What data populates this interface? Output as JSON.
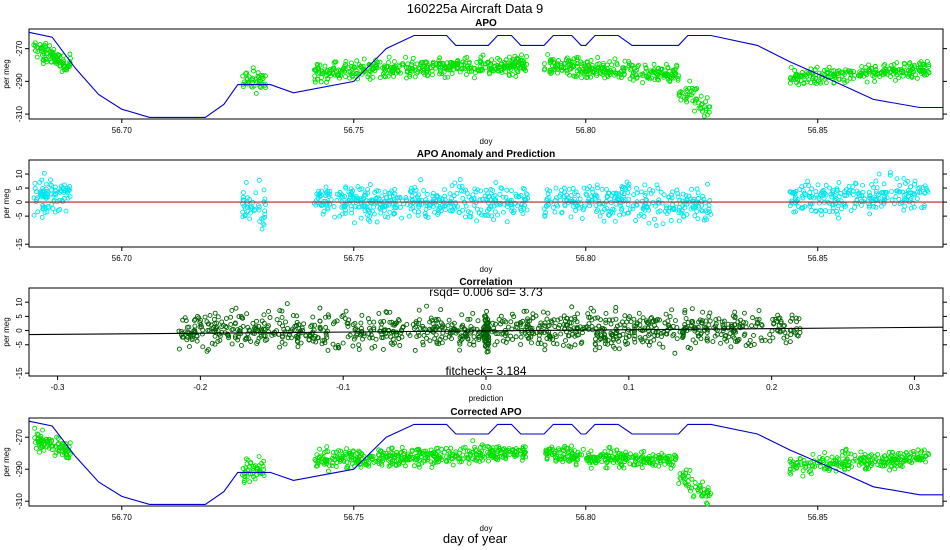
{
  "figure": {
    "title": "160225a   Aircraft Data 9",
    "bottom_label": "day of year"
  },
  "colors": {
    "green": "#00e000",
    "cyan": "#00e5ee",
    "dark_green": "#006400",
    "blue": "#0000cd",
    "red": "#b22222",
    "black": "#000000"
  },
  "chart_data": [
    {
      "type": "scatter",
      "title": "APO",
      "xlabel": "doy",
      "ylabel": "per meg",
      "xlim": [
        56.68,
        56.877
      ],
      "ylim": [
        -313,
        -258
      ],
      "xticks": [
        56.7,
        56.75,
        56.8,
        56.85
      ],
      "xtick_labels": [
        "56.70",
        "56.75",
        "56.80",
        "56.85"
      ],
      "yticks": [
        -310,
        -290,
        -270
      ],
      "ytick_labels": [
        "-310",
        "-290",
        "-270"
      ],
      "point_color": "green",
      "segments": [
        {
          "x0": 56.681,
          "x1": 56.689,
          "mean": -275,
          "trend": -10,
          "spread": 4,
          "n": 90
        },
        {
          "x0": 56.726,
          "x1": 56.731,
          "mean": -290,
          "trend": 0,
          "spread": 5,
          "n": 45
        },
        {
          "x0": 56.7415,
          "x1": 56.7875,
          "mean": -282,
          "trend": 5,
          "spread": 4,
          "n": 420
        },
        {
          "x0": 56.791,
          "x1": 56.82,
          "mean": -283,
          "trend": -5,
          "spread": 4,
          "n": 260
        },
        {
          "x0": 56.82,
          "x1": 56.827,
          "mean": -300,
          "trend": -14,
          "spread": 5,
          "n": 50
        },
        {
          "x0": 56.844,
          "x1": 56.874,
          "mean": -285,
          "trend": 6,
          "spread": 4,
          "n": 240
        }
      ],
      "line": {
        "name": "blue curve",
        "color": "blue",
        "x": [
          56.68,
          56.685,
          56.69,
          56.695,
          56.7,
          56.706,
          56.712,
          56.718,
          56.722,
          56.725,
          56.732,
          56.737,
          56.75,
          56.757,
          56.763,
          56.77,
          56.772,
          56.779,
          56.781,
          56.784,
          56.786,
          56.791,
          56.793,
          56.797,
          56.799,
          56.8,
          56.802,
          56.807,
          56.81,
          56.813,
          56.82,
          56.822,
          56.825,
          56.827,
          56.837,
          56.844,
          56.852,
          56.862,
          56.872,
          56.877
        ],
        "y": [
          -260,
          -263,
          -282,
          -298,
          -307,
          -312,
          -312,
          -312,
          -304,
          -292,
          -292,
          -297,
          -290,
          -270,
          -262,
          -262,
          -268,
          -268,
          -262,
          -262,
          -268,
          -268,
          -262,
          -262,
          -268,
          -268,
          -262,
          -262,
          -268,
          -268,
          -268,
          -262,
          -262,
          -262,
          -268,
          -278,
          -288,
          -301,
          -306,
          -306
        ]
      }
    },
    {
      "type": "scatter",
      "title": "APO Anomaly and Prediction",
      "xlabel": "doy",
      "ylabel": "per meg",
      "xlim": [
        56.68,
        56.877
      ],
      "ylim": [
        -16,
        15
      ],
      "xticks": [
        56.7,
        56.75,
        56.8,
        56.85
      ],
      "xtick_labels": [
        "56.70",
        "56.75",
        "56.80",
        "56.85"
      ],
      "yticks": [
        -15,
        -5,
        0,
        5,
        10
      ],
      "ytick_labels": [
        "-15",
        "-5",
        "0",
        "5",
        "10"
      ],
      "point_color": "cyan",
      "segments": [
        {
          "x0": 56.681,
          "x1": 56.689,
          "mean": 2,
          "trend": 0,
          "spread": 4,
          "n": 90
        },
        {
          "x0": 56.726,
          "x1": 56.731,
          "mean": -2,
          "trend": 0,
          "spread": 5,
          "n": 45
        },
        {
          "x0": 56.7415,
          "x1": 56.7875,
          "mean": 0,
          "trend": 0,
          "spread": 4,
          "n": 420
        },
        {
          "x0": 56.791,
          "x1": 56.827,
          "mean": 0,
          "trend": -2,
          "spread": 4.5,
          "n": 300
        },
        {
          "x0": 56.844,
          "x1": 56.874,
          "mean": 2,
          "trend": 2,
          "spread": 4,
          "n": 240
        }
      ],
      "line": {
        "name": "prediction",
        "color": "red",
        "x": [
          56.68,
          56.877
        ],
        "y": [
          0,
          0
        ]
      }
    },
    {
      "type": "scatter",
      "title": "Correlation",
      "subtitle": "rsqd= 0.006 sd= 3.73",
      "annotation": "fitcheck= 3.184",
      "xlabel": "prediction",
      "ylabel": "per meg",
      "xlim": [
        -0.32,
        0.32
      ],
      "ylim": [
        -16,
        15
      ],
      "xticks": [
        -0.3,
        -0.2,
        -0.1,
        0.0,
        0.1,
        0.2,
        0.3
      ],
      "xtick_labels": [
        "-0.3",
        "-0.2",
        "-0.1",
        "0.0",
        "0.1",
        "0.2",
        "0.3"
      ],
      "yticks": [
        -15,
        -5,
        0,
        5,
        10
      ],
      "ytick_labels": [
        "-15",
        "-5",
        "0",
        "5",
        "10"
      ],
      "point_color": "dark_green",
      "segments": [
        {
          "x0": -0.215,
          "x1": -0.003,
          "mean": 0,
          "trend": 0,
          "spread": 4.5,
          "n": 480
        },
        {
          "x0": -0.002,
          "x1": 0.002,
          "mean": 0,
          "trend": 0,
          "spread": 4.5,
          "n": 80
        },
        {
          "x0": 0.003,
          "x1": 0.22,
          "mean": 0.5,
          "trend": 0,
          "spread": 4.5,
          "n": 520
        }
      ],
      "line": {
        "name": "fit line",
        "color": "black",
        "x": [
          -0.32,
          0.32
        ],
        "y": [
          -1.4,
          1.2
        ]
      }
    },
    {
      "type": "scatter",
      "title": "Corrected APO",
      "xlabel": "doy",
      "ylabel": "per meg",
      "xlim": [
        56.68,
        56.877
      ],
      "ylim": [
        -313,
        -258
      ],
      "xticks": [
        56.7,
        56.75,
        56.8,
        56.85
      ],
      "xtick_labels": [
        "56.70",
        "56.75",
        "56.80",
        "56.85"
      ],
      "yticks": [
        -310,
        -290,
        -270
      ],
      "ytick_labels": [
        "-310",
        "-290",
        "-270"
      ],
      "point_color": "green",
      "segments": [
        {
          "x0": 56.681,
          "x1": 56.689,
          "mean": -275,
          "trend": -10,
          "spread": 4,
          "n": 90
        },
        {
          "x0": 56.726,
          "x1": 56.731,
          "mean": -290,
          "trend": 0,
          "spread": 5,
          "n": 45
        },
        {
          "x0": 56.7415,
          "x1": 56.7875,
          "mean": -282,
          "trend": 5,
          "spread": 4,
          "n": 420
        },
        {
          "x0": 56.791,
          "x1": 56.82,
          "mean": -283,
          "trend": -5,
          "spread": 4,
          "n": 260
        },
        {
          "x0": 56.82,
          "x1": 56.827,
          "mean": -300,
          "trend": -14,
          "spread": 5,
          "n": 50
        },
        {
          "x0": 56.844,
          "x1": 56.874,
          "mean": -285,
          "trend": 6,
          "spread": 4,
          "n": 240
        }
      ],
      "line": {
        "name": "blue curve",
        "color": "blue",
        "x": [
          56.68,
          56.685,
          56.69,
          56.695,
          56.7,
          56.706,
          56.712,
          56.718,
          56.722,
          56.725,
          56.732,
          56.737,
          56.75,
          56.757,
          56.763,
          56.77,
          56.772,
          56.779,
          56.781,
          56.784,
          56.786,
          56.791,
          56.793,
          56.797,
          56.799,
          56.8,
          56.802,
          56.807,
          56.81,
          56.813,
          56.82,
          56.822,
          56.825,
          56.827,
          56.837,
          56.844,
          56.852,
          56.862,
          56.872,
          56.877
        ],
        "y": [
          -260,
          -263,
          -282,
          -298,
          -307,
          -312,
          -312,
          -312,
          -304,
          -292,
          -292,
          -297,
          -290,
          -270,
          -262,
          -262,
          -268,
          -268,
          -262,
          -262,
          -268,
          -268,
          -262,
          -262,
          -268,
          -268,
          -262,
          -262,
          -268,
          -268,
          -268,
          -262,
          -262,
          -262,
          -268,
          -278,
          -288,
          -301,
          -306,
          -306
        ]
      }
    }
  ]
}
